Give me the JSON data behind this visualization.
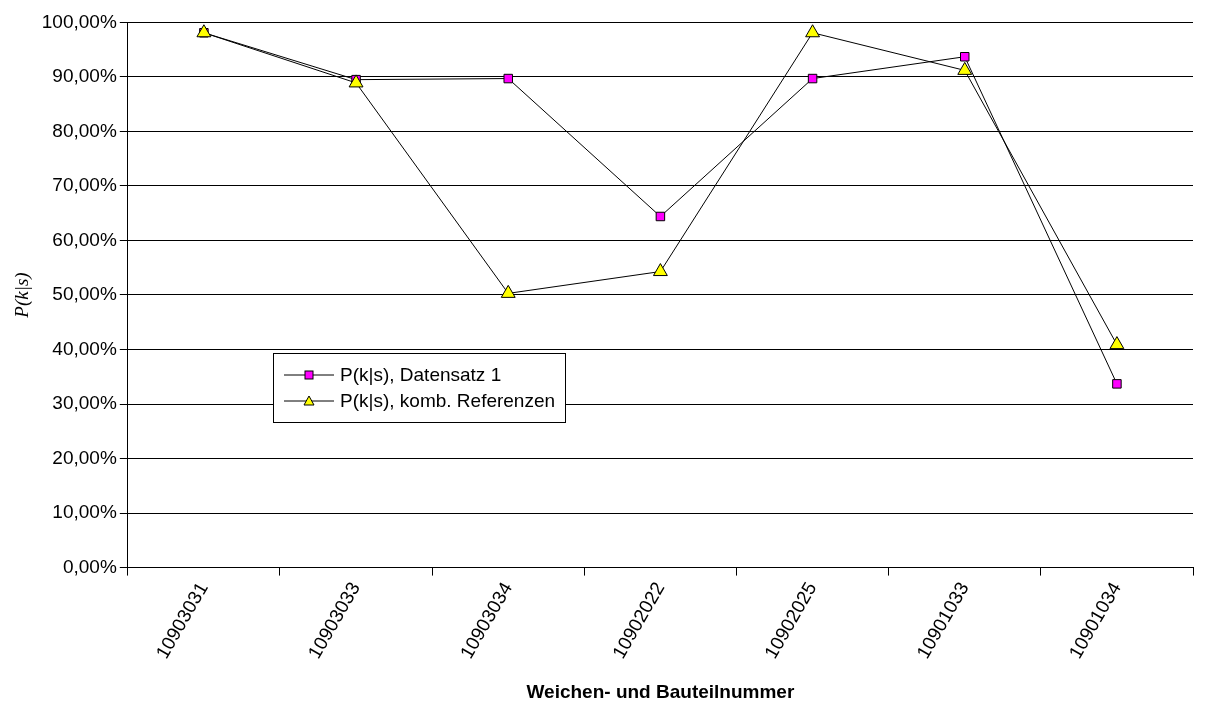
{
  "chart_data": {
    "type": "line",
    "xlabel": "Weichen- und Bauteilnummer",
    "ylabel": "P(k|s)",
    "categories": [
      "10903031",
      "10903033",
      "10903034",
      "10902022",
      "10902025",
      "10901033",
      "10901034"
    ],
    "series": [
      {
        "name": "P(k|s), Datensatz 1",
        "color": "#ff00ff",
        "marker": "square",
        "values": [
          98.1,
          89.5,
          89.7,
          64.4,
          89.7,
          93.7,
          33.7
        ]
      },
      {
        "name": "P(k|s), komb. Referenzen",
        "color": "#ffff00",
        "marker": "triangle",
        "values": [
          98.1,
          88.9,
          50.3,
          54.3,
          98.1,
          91.2,
          40.9
        ]
      }
    ],
    "ylim": [
      0,
      100
    ],
    "yticks": [
      {
        "value": 0,
        "label": "0,00%"
      },
      {
        "value": 10,
        "label": "10,00%"
      },
      {
        "value": 20,
        "label": "20,00%"
      },
      {
        "value": 30,
        "label": "30,00%"
      },
      {
        "value": 40,
        "label": "40,00%"
      },
      {
        "value": 50,
        "label": "50,00%"
      },
      {
        "value": 60,
        "label": "60,00%"
      },
      {
        "value": 70,
        "label": "70,00%"
      },
      {
        "value": 80,
        "label": "80,00%"
      },
      {
        "value": 90,
        "label": "90,00%"
      },
      {
        "value": 100,
        "label": "100,00%"
      }
    ],
    "grid": "y",
    "legend": "left"
  }
}
